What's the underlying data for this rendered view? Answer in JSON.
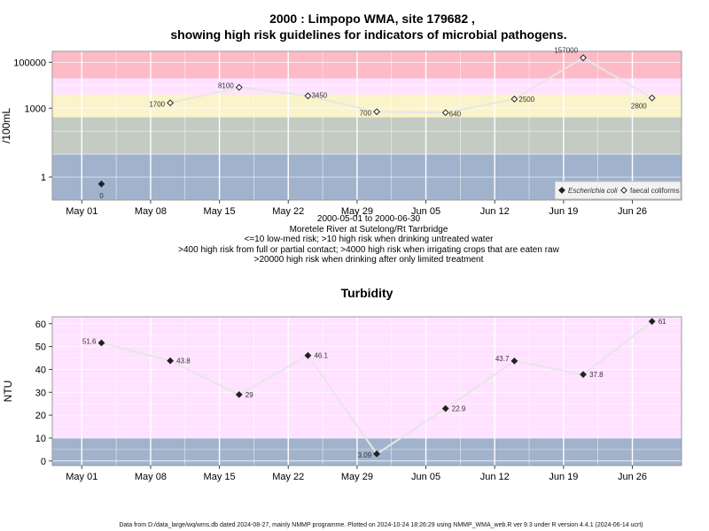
{
  "header": {
    "title_line1": "2000 : Limpopo WMA, site 179682 ,",
    "title_line2": "showing high risk guidelines for indicators of microbial pathogens."
  },
  "x_ticks": [
    "May 01",
    "May 08",
    "May 15",
    "May 22",
    "May 29",
    "Jun 05",
    "Jun 12",
    "Jun 19",
    "Jun 26"
  ],
  "info": {
    "date_range": "2000-05-01 to 2000-06-30",
    "site": "Moretele River at Sutelong/Rt Tarrbridge",
    "line1": "<=10 low-med risk; >10 high risk when drinking untreated water",
    "line2": ">400 high risk from full or partial contact; >4000 high risk when irrigating crops that are eaten raw",
    "line3": ">20000 high risk when drinking after only limited treatment"
  },
  "footer": "Data from D:/data_large/wq/wms.db dated 2024-08-27, mainly NMMP programme. Plotted on 2024-10-24 18:26:29 using NMMP_WMA_web.R ver 9.3 under R version 4.4.1 (2024-06-14 ucrt)",
  "chart_data": [
    {
      "type": "line",
      "ylabel": "/100mL",
      "y_scale": "log",
      "ylim": [
        0.1,
        300000
      ],
      "y_ticks": [
        "1",
        "1000",
        "100000"
      ],
      "x_range": [
        "2000-04-28",
        "2000-07-01"
      ],
      "bands": [
        {
          "from": 0.1,
          "to": 10,
          "color": "#a1b3cc"
        },
        {
          "from": 10,
          "to": 400,
          "color": "#c3cbc2"
        },
        {
          "from": 400,
          "to": 4000,
          "color": "#fbf3c9"
        },
        {
          "from": 4000,
          "to": 20000,
          "color": "#ffe2ff"
        },
        {
          "from": 20000,
          "to": 300000,
          "color": "#fdbac7"
        }
      ],
      "legend": {
        "position": "bottom-right",
        "entries": [
          {
            "label": "Escherichia coli",
            "marker": "filled-diamond"
          },
          {
            "label": "faecal coliforms",
            "marker": "open-diamond"
          }
        ]
      },
      "series": [
        {
          "name": "Escherichia coli",
          "marker": "filled-diamond",
          "x": [
            "2000-05-03"
          ],
          "y": [
            0.5
          ],
          "labels": [
            "0"
          ]
        },
        {
          "name": "faecal coliforms",
          "marker": "open-diamond",
          "x": [
            "2000-05-10",
            "2000-05-17",
            "2000-05-24",
            "2000-05-31",
            "2000-06-07",
            "2000-06-14",
            "2000-06-21",
            "2000-06-28"
          ],
          "y": [
            1700,
            8100,
            3450,
            700,
            640,
            2500,
            157000,
            2800
          ],
          "labels": [
            "1700",
            "8100",
            "3450",
            "700",
            "640",
            "2500",
            "157000",
            "2800"
          ]
        }
      ]
    },
    {
      "type": "line",
      "title": "Turbidity",
      "ylabel": "NTU",
      "ylim": [
        -2,
        63
      ],
      "y_ticks": [
        0,
        10,
        20,
        30,
        40,
        50,
        60
      ],
      "x_range": [
        "2000-04-28",
        "2000-07-01"
      ],
      "bands": [
        {
          "from": -2,
          "to": 10,
          "color": "#a1b3cc"
        },
        {
          "from": 10,
          "to": 63,
          "color": "#ffe2ff"
        }
      ],
      "series": [
        {
          "marker": "filled-diamond",
          "x": [
            "2000-05-03",
            "2000-05-10",
            "2000-05-17",
            "2000-05-24",
            "2000-05-31",
            "2000-06-07",
            "2000-06-14",
            "2000-06-21",
            "2000-06-28"
          ],
          "y": [
            51.6,
            43.8,
            29,
            46.1,
            3.09,
            22.9,
            43.7,
            37.8,
            61
          ],
          "labels": [
            "51.6",
            "43.8",
            "29",
            "46.1",
            "3.09",
            "22.9",
            "43.7",
            "37.8",
            "61"
          ]
        }
      ]
    }
  ]
}
